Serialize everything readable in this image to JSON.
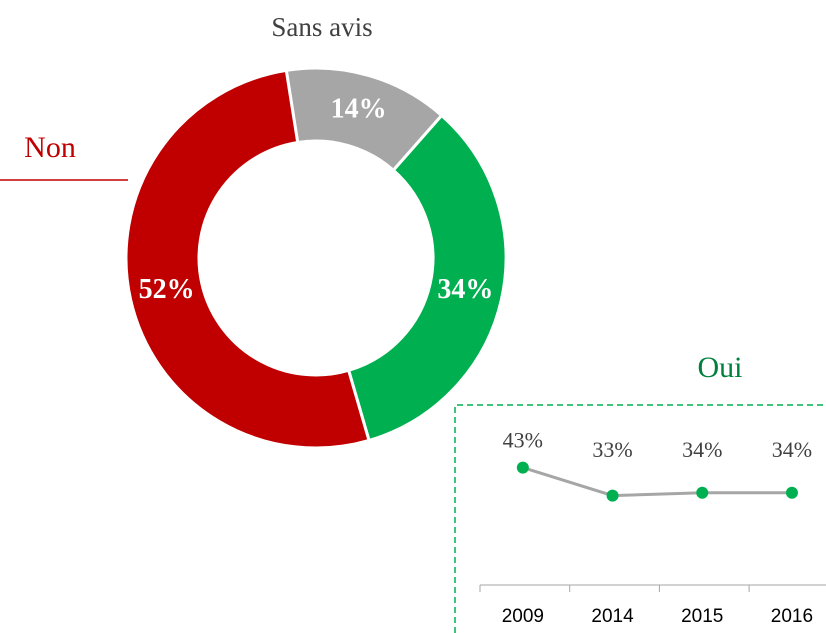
{
  "chart_data": [
    {
      "type": "pie",
      "categories": [
        "Sans avis",
        "Oui",
        "Non"
      ],
      "values": [
        14,
        34,
        52
      ],
      "value_labels": [
        "14%",
        "34%",
        "52%"
      ],
      "colors": [
        "#a6a6a6",
        "#00b050",
        "#c00000"
      ]
    },
    {
      "type": "line",
      "categories": [
        "2009",
        "2014",
        "2015",
        "2016"
      ],
      "values": [
        43,
        33,
        34,
        34
      ],
      "value_labels": [
        "43%",
        "33%",
        "34%",
        "34%"
      ],
      "color": "#00b050",
      "line_color": "#a6a6a6",
      "ylim": [
        0,
        60
      ]
    }
  ]
}
